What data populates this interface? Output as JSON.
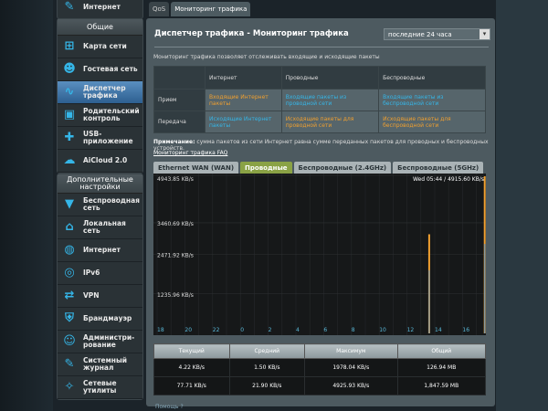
{
  "sidebar": {
    "top_item": "Интернет",
    "general_header": "Общие",
    "general": [
      {
        "label": "Карта сети",
        "icon": "network-map-icon"
      },
      {
        "label": "Гостевая сеть",
        "icon": "guest-network-icon"
      },
      {
        "label": "Диспетчер трафика",
        "icon": "traffic-manager-icon",
        "active": true
      },
      {
        "label": "Родительский контроль",
        "icon": "lock-icon"
      },
      {
        "label": "USB-приложение",
        "icon": "puzzle-icon"
      },
      {
        "label": "AiCloud 2.0",
        "icon": "cloud-icon"
      }
    ],
    "advanced_header": "Дополнительные настройки",
    "advanced": [
      {
        "label": "Беспроводная сеть",
        "icon": "wireless-icon"
      },
      {
        "label": "Локальная сеть",
        "icon": "home-icon"
      },
      {
        "label": "Интернет",
        "icon": "globe-icon"
      },
      {
        "label": "IPv6",
        "icon": "ipv6-icon"
      },
      {
        "label": "VPN",
        "icon": "vpn-icon"
      },
      {
        "label": "Брандмауэр",
        "icon": "shield-icon"
      },
      {
        "label": "Администри-рование",
        "icon": "admin-icon"
      },
      {
        "label": "Системный журнал",
        "icon": "log-icon"
      },
      {
        "label": "Сетевые утилиты",
        "icon": "tools-icon"
      }
    ]
  },
  "tabs": [
    "QoS",
    "Мониторинг трафика"
  ],
  "main": {
    "title": "Диспетчер трафика - Мониторинг трафика",
    "period": "последние  24  часа",
    "description": "Мониторинг трафика позволяет отслеживать входящие и исходящие пакеты",
    "legend_table": {
      "headers": [
        "",
        "Интернет",
        "Проводные",
        "Беспроводные"
      ],
      "rows": [
        {
          "label": "Прием",
          "cells": [
            "Входящие Интернет пакеты",
            "Входящие пакеты из проводной сети",
            "Входящие пакеты из беспроводной сети"
          ]
        },
        {
          "label": "Передача",
          "cells": [
            "Исходящие Интернет пакеты",
            "Исходящие пакеты для проводной сети",
            "Исходящие пакеты для беспроводной сети"
          ]
        }
      ]
    },
    "note_label": "Примечание:",
    "note_text": " сумма пакетов из сети Интернет равна сумме переданных пакетов для проводных и беспроводных устройств.",
    "faq_link": "Мониторинг трафика FAQ",
    "chart_tabs": [
      "Ethernet WAN (WAN)",
      "Проводные",
      "Беспроводные (2.4GHz)",
      "Беспроводные (5GHz)"
    ],
    "active_chart_tab": 1,
    "stats": {
      "headers": [
        "Текущий",
        "Средний",
        "Максимум",
        "Общий"
      ],
      "rows": [
        {
          "color": "#35b6e8",
          "cells": [
            "4.22 KB/s",
            "1.50 KB/s",
            "1978.04 KB/s",
            "126.94 MB"
          ]
        },
        {
          "color": "#f0a030",
          "cells": [
            "77.71 KB/s",
            "21.90 KB/s",
            "4925.93 KB/s",
            "1,847.59 MB"
          ]
        }
      ]
    },
    "help": "Помощь ?"
  },
  "chart_data": {
    "type": "line",
    "y_ticks": [
      "4943.85 KB/s",
      "3460.69 KB/s",
      "2471.92 KB/s",
      "1235.96 KB/s"
    ],
    "y_tick_values": [
      4943.85,
      3460.69,
      2471.92,
      1235.96
    ],
    "ylim": [
      0,
      4943.85
    ],
    "x_ticks": [
      "18",
      "20",
      "22",
      "0",
      "2",
      "4",
      "6",
      "8",
      "10",
      "12",
      "14",
      "16"
    ],
    "readout": "Wed 05:44  /  4915.60 KB/s",
    "grid": true,
    "series": [
      {
        "color": "#f0a030",
        "points": [
          [
            13.6,
            3100
          ],
          [
            17.6,
            4915.6
          ]
        ]
      },
      {
        "color": "#8a9a9e",
        "points": [
          [
            13.6,
            1978
          ],
          [
            17.6,
            2800
          ]
        ]
      }
    ]
  }
}
